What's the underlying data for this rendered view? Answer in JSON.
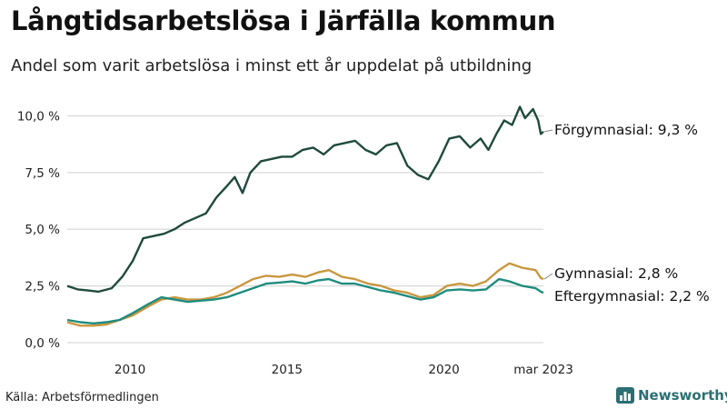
{
  "header": {
    "title": "Långtidsarbetslösa i Järfälla kommun",
    "subtitle": "Andel som varit arbetslösa i minst ett år uppdelat på utbildning"
  },
  "footer": {
    "source": "Källa: Arbetsförmedlingen",
    "logo_text": "Newsworthy",
    "logo_icon": "bar-chart-icon"
  },
  "chart_data": {
    "type": "line",
    "x_start": "2008-01",
    "x_end": "2023-03",
    "x_ticks": [
      {
        "label": "2010",
        "date": "2010-01"
      },
      {
        "label": "2015",
        "date": "2015-01"
      },
      {
        "label": "2020",
        "date": "2020-01"
      },
      {
        "label": "mar 2023",
        "date": "2023-03"
      }
    ],
    "y_ticks": [
      {
        "label": "0,0 %",
        "value": 0
      },
      {
        "label": "2,5 %",
        "value": 2.5
      },
      {
        "label": "5,0 %",
        "value": 5.0
      },
      {
        "label": "7,5 %",
        "value": 7.5
      },
      {
        "label": "10,0 %",
        "value": 10.0
      }
    ],
    "ylim": [
      0,
      10.5
    ],
    "grid": true,
    "series": [
      {
        "name": "Förgymnasial",
        "end_label": "Förgymnasial: 9,3 %",
        "color": "#1f4a3d",
        "points": [
          [
            "2008-01",
            2.5
          ],
          [
            "2008-05",
            2.35
          ],
          [
            "2008-09",
            2.3
          ],
          [
            "2009-01",
            2.25
          ],
          [
            "2009-06",
            2.4
          ],
          [
            "2009-10",
            2.9
          ],
          [
            "2010-02",
            3.6
          ],
          [
            "2010-06",
            4.6
          ],
          [
            "2010-10",
            4.7
          ],
          [
            "2011-02",
            4.8
          ],
          [
            "2011-06",
            5.0
          ],
          [
            "2011-10",
            5.3
          ],
          [
            "2012-02",
            5.5
          ],
          [
            "2012-06",
            5.7
          ],
          [
            "2012-10",
            6.4
          ],
          [
            "2013-02",
            6.9
          ],
          [
            "2013-05",
            7.3
          ],
          [
            "2013-08",
            6.6
          ],
          [
            "2013-11",
            7.5
          ],
          [
            "2014-03",
            8.0
          ],
          [
            "2014-07",
            8.1
          ],
          [
            "2014-11",
            8.2
          ],
          [
            "2015-03",
            8.2
          ],
          [
            "2015-07",
            8.5
          ],
          [
            "2015-11",
            8.6
          ],
          [
            "2016-03",
            8.3
          ],
          [
            "2016-07",
            8.7
          ],
          [
            "2016-11",
            8.8
          ],
          [
            "2017-03",
            8.9
          ],
          [
            "2017-07",
            8.5
          ],
          [
            "2017-11",
            8.3
          ],
          [
            "2018-03",
            8.7
          ],
          [
            "2018-07",
            8.8
          ],
          [
            "2018-11",
            7.8
          ],
          [
            "2019-03",
            7.4
          ],
          [
            "2019-07",
            7.2
          ],
          [
            "2019-11",
            8.0
          ],
          [
            "2020-03",
            9.0
          ],
          [
            "2020-07",
            9.1
          ],
          [
            "2020-11",
            8.6
          ],
          [
            "2021-03",
            9.0
          ],
          [
            "2021-06",
            8.5
          ],
          [
            "2021-09",
            9.2
          ],
          [
            "2021-12",
            9.8
          ],
          [
            "2022-03",
            9.6
          ],
          [
            "2022-06",
            10.4
          ],
          [
            "2022-08",
            9.9
          ],
          [
            "2022-11",
            10.3
          ],
          [
            "2023-01",
            9.8
          ],
          [
            "2023-02",
            9.2
          ],
          [
            "2023-03",
            9.3
          ]
        ]
      },
      {
        "name": "Gymnasial",
        "end_label": "Gymnasial: 2,8 %",
        "color": "#c9973f",
        "points": [
          [
            "2008-01",
            0.9
          ],
          [
            "2008-06",
            0.75
          ],
          [
            "2008-11",
            0.75
          ],
          [
            "2009-04",
            0.8
          ],
          [
            "2009-09",
            1.0
          ],
          [
            "2010-02",
            1.2
          ],
          [
            "2010-08",
            1.6
          ],
          [
            "2011-01",
            1.9
          ],
          [
            "2011-06",
            2.0
          ],
          [
            "2011-11",
            1.9
          ],
          [
            "2012-04",
            1.9
          ],
          [
            "2012-09",
            2.0
          ],
          [
            "2013-02",
            2.2
          ],
          [
            "2013-07",
            2.5
          ],
          [
            "2013-12",
            2.8
          ],
          [
            "2014-05",
            2.95
          ],
          [
            "2014-10",
            2.9
          ],
          [
            "2015-03",
            3.0
          ],
          [
            "2015-08",
            2.9
          ],
          [
            "2016-01",
            3.1
          ],
          [
            "2016-05",
            3.2
          ],
          [
            "2016-10",
            2.9
          ],
          [
            "2017-03",
            2.8
          ],
          [
            "2017-08",
            2.6
          ],
          [
            "2018-01",
            2.5
          ],
          [
            "2018-06",
            2.3
          ],
          [
            "2018-11",
            2.2
          ],
          [
            "2019-04",
            2.0
          ],
          [
            "2019-09",
            2.1
          ],
          [
            "2020-02",
            2.5
          ],
          [
            "2020-07",
            2.6
          ],
          [
            "2020-12",
            2.5
          ],
          [
            "2021-05",
            2.7
          ],
          [
            "2021-10",
            3.2
          ],
          [
            "2022-02",
            3.5
          ],
          [
            "2022-07",
            3.3
          ],
          [
            "2022-12",
            3.2
          ],
          [
            "2023-02",
            2.85
          ],
          [
            "2023-03",
            2.8
          ]
        ]
      },
      {
        "name": "Eftergymnasial",
        "end_label": "Eftergymnasial: 2,2 %",
        "color": "#1e8c7e",
        "points": [
          [
            "2008-01",
            1.0
          ],
          [
            "2008-06",
            0.9
          ],
          [
            "2008-11",
            0.85
          ],
          [
            "2009-04",
            0.9
          ],
          [
            "2009-09",
            1.0
          ],
          [
            "2010-02",
            1.3
          ],
          [
            "2010-08",
            1.7
          ],
          [
            "2011-01",
            2.0
          ],
          [
            "2011-06",
            1.9
          ],
          [
            "2011-11",
            1.8
          ],
          [
            "2012-04",
            1.85
          ],
          [
            "2012-09",
            1.9
          ],
          [
            "2013-02",
            2.0
          ],
          [
            "2013-07",
            2.2
          ],
          [
            "2013-12",
            2.4
          ],
          [
            "2014-05",
            2.6
          ],
          [
            "2014-10",
            2.65
          ],
          [
            "2015-03",
            2.7
          ],
          [
            "2015-08",
            2.6
          ],
          [
            "2016-01",
            2.75
          ],
          [
            "2016-05",
            2.8
          ],
          [
            "2016-10",
            2.6
          ],
          [
            "2017-03",
            2.6
          ],
          [
            "2017-08",
            2.45
          ],
          [
            "2018-01",
            2.3
          ],
          [
            "2018-06",
            2.2
          ],
          [
            "2018-11",
            2.05
          ],
          [
            "2019-04",
            1.9
          ],
          [
            "2019-09",
            2.0
          ],
          [
            "2020-02",
            2.3
          ],
          [
            "2020-07",
            2.35
          ],
          [
            "2020-12",
            2.3
          ],
          [
            "2021-05",
            2.35
          ],
          [
            "2021-10",
            2.8
          ],
          [
            "2022-02",
            2.7
          ],
          [
            "2022-07",
            2.5
          ],
          [
            "2022-12",
            2.4
          ],
          [
            "2023-02",
            2.25
          ],
          [
            "2023-03",
            2.2
          ]
        ]
      }
    ]
  }
}
